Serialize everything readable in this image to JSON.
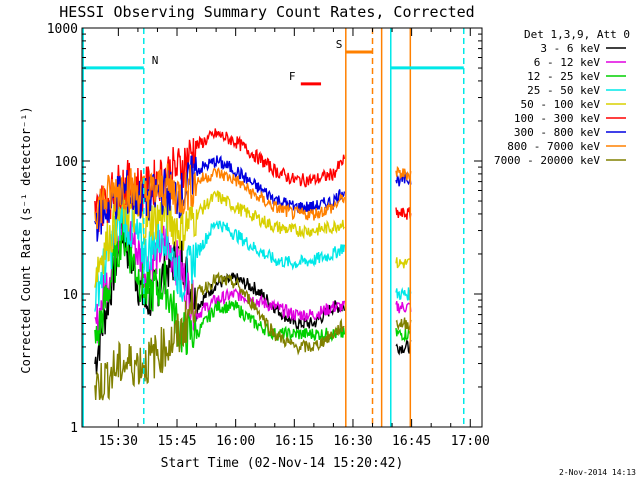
{
  "chart_data": {
    "type": "line",
    "title": "HESSI Observing Summary Count Rates, Corrected",
    "xlabel": "Start Time (02-Nov-14 15:20:42)",
    "ylabel": "Corrected Count Rate (s⁻¹ detector⁻¹)",
    "y_scale": "log",
    "ylim": [
      1,
      1000
    ],
    "xlim": [
      "15:20:42",
      "17:03:00"
    ],
    "x_ticks": [
      "15:30",
      "15:45",
      "16:00",
      "16:15",
      "16:30",
      "16:45",
      "17:00"
    ],
    "y_ticks": [
      "1",
      "10",
      "100",
      "1000"
    ],
    "legend_title": "Det 1,3,9, Att 0",
    "legend_position": "right",
    "footer_timestamp": "2-Nov-2014 14:13",
    "series": [
      {
        "name": "3 - 6 keV",
        "color": "#000000",
        "x": [
          "15:24",
          "15:31",
          "15:37",
          "15:42",
          "15:46",
          "15:50",
          "15:55",
          "16:00",
          "16:05",
          "16:10",
          "16:15",
          "16:20",
          "16:25",
          "16:28",
          "16:41",
          "16:43",
          "16:45"
        ],
        "y": [
          3,
          30,
          8,
          15,
          20,
          8,
          12,
          13,
          11,
          8,
          6,
          6,
          8,
          8,
          4,
          4,
          4
        ]
      },
      {
        "name": "6 - 12 keV",
        "color": "#e000e0",
        "x": [
          "15:24",
          "15:31",
          "15:37",
          "15:42",
          "15:46",
          "15:50",
          "15:55",
          "16:00",
          "16:05",
          "16:10",
          "16:15",
          "16:20",
          "16:25",
          "16:28",
          "16:41",
          "16:43",
          "16:45"
        ],
        "y": [
          5,
          40,
          15,
          25,
          15,
          7,
          9,
          10,
          9,
          8,
          7,
          7,
          8,
          8,
          8,
          8,
          8
        ]
      },
      {
        "name": "12 - 25 keV",
        "color": "#00d000",
        "x": [
          "15:24",
          "15:31",
          "15:37",
          "15:42",
          "15:46",
          "15:50",
          "15:55",
          "16:00",
          "16:05",
          "16:10",
          "16:15",
          "16:20",
          "16:25",
          "16:28",
          "16:41",
          "16:43",
          "16:45"
        ],
        "y": [
          4,
          30,
          10,
          12,
          5,
          5,
          8,
          8,
          6,
          5,
          5,
          5,
          5,
          5,
          5,
          5,
          5
        ]
      },
      {
        "name": "25 - 50 keV",
        "color": "#00e8e8",
        "x": [
          "15:24",
          "15:31",
          "15:37",
          "15:42",
          "15:46",
          "15:50",
          "15:55",
          "16:00",
          "16:05",
          "16:10",
          "16:15",
          "16:20",
          "16:25",
          "16:28",
          "16:41",
          "16:43",
          "16:45"
        ],
        "y": [
          10,
          40,
          20,
          30,
          12,
          20,
          35,
          28,
          22,
          18,
          17,
          18,
          20,
          23,
          10,
          10,
          10
        ]
      },
      {
        "name": "50 - 100 keV",
        "color": "#d8d000",
        "x": [
          "15:24",
          "15:31",
          "15:37",
          "15:42",
          "15:46",
          "15:50",
          "15:55",
          "16:00",
          "16:05",
          "16:10",
          "16:15",
          "16:20",
          "16:25",
          "16:28",
          "16:41",
          "16:43",
          "16:45"
        ],
        "y": [
          15,
          45,
          35,
          40,
          30,
          40,
          55,
          45,
          38,
          32,
          30,
          30,
          32,
          35,
          17,
          17,
          17
        ]
      },
      {
        "name": "100 - 300 keV",
        "color": "#ff0000",
        "x": [
          "15:24",
          "15:31",
          "15:37",
          "15:42",
          "15:46",
          "15:50",
          "15:55",
          "16:00",
          "16:05",
          "16:10",
          "16:15",
          "16:20",
          "16:25",
          "16:28",
          "16:41",
          "16:43",
          "16:45"
        ],
        "y": [
          40,
          70,
          60,
          80,
          90,
          130,
          160,
          140,
          110,
          85,
          72,
          72,
          80,
          105,
          40,
          40,
          40
        ]
      },
      {
        "name": "300 - 800 keV",
        "color": "#0000e0",
        "x": [
          "15:24",
          "15:31",
          "15:37",
          "15:42",
          "15:46",
          "15:50",
          "15:55",
          "16:00",
          "16:05",
          "16:10",
          "16:15",
          "16:20",
          "16:25",
          "16:28",
          "16:41",
          "16:43",
          "16:45"
        ],
        "y": [
          35,
          60,
          50,
          60,
          55,
          85,
          100,
          85,
          65,
          52,
          45,
          45,
          50,
          62,
          72,
          72,
          72
        ]
      },
      {
        "name": "800 - 7000 keV",
        "color": "#ff8000",
        "x": [
          "15:24",
          "15:31",
          "15:37",
          "15:42",
          "15:46",
          "15:50",
          "15:55",
          "16:00",
          "16:05",
          "16:10",
          "16:15",
          "16:20",
          "16:25",
          "16:28",
          "16:41",
          "16:43",
          "16:45"
        ],
        "y": [
          45,
          65,
          55,
          65,
          55,
          70,
          82,
          72,
          55,
          45,
          40,
          40,
          45,
          55,
          80,
          80,
          80
        ]
      },
      {
        "name": "7000 - 20000 keV",
        "color": "#808000",
        "x": [
          "15:24",
          "15:31",
          "15:37",
          "15:42",
          "15:46",
          "15:50",
          "15:55",
          "16:00",
          "16:05",
          "16:10",
          "16:15",
          "16:20",
          "16:25",
          "16:28",
          "16:41",
          "16:43",
          "16:45"
        ],
        "y": [
          2,
          3,
          3,
          4,
          5,
          10,
          13,
          12,
          8,
          5,
          4,
          4,
          5,
          6,
          6,
          6,
          6
        ]
      }
    ],
    "flag_lines": [
      {
        "label": "N",
        "color": "#00e8e8",
        "type": "bar",
        "x_start": "15:20:42",
        "x_end": "15:36:30",
        "y": 680,
        "y_frac": 0.9
      },
      {
        "label": "",
        "color": "#00e8e8",
        "type": "bar",
        "x_start": "16:39:40",
        "x_end": "16:58:20",
        "y": 680,
        "y_frac": 0.9
      },
      {
        "label": "S",
        "color": "#ff8000",
        "type": "bar",
        "x_start": "16:28:10",
        "x_end": "16:35:00",
        "y": 820,
        "y_frac": 0.94
      },
      {
        "label": "F",
        "color": "#ff0000",
        "type": "bar",
        "x_start": "16:16:40",
        "x_end": "16:21:50",
        "y": 530,
        "y_frac": 0.86
      }
    ],
    "vertical_lines": [
      {
        "x": "15:21:00",
        "color": "#00e8e8",
        "style": "solid"
      },
      {
        "x": "15:36:30",
        "color": "#00e8e8",
        "style": "dashed"
      },
      {
        "x": "16:28:10",
        "color": "#ff8000",
        "style": "solid"
      },
      {
        "x": "16:35:00",
        "color": "#ff8000",
        "style": "dashed"
      },
      {
        "x": "16:39:40",
        "color": "#00e8e8",
        "style": "solid"
      },
      {
        "x": "16:58:20",
        "color": "#00e8e8",
        "style": "dashed"
      },
      {
        "x": "16:37:20",
        "color": "#ff8000",
        "style": "solid"
      },
      {
        "x": "16:44:40",
        "color": "#ff8000",
        "style": "solid"
      }
    ]
  }
}
